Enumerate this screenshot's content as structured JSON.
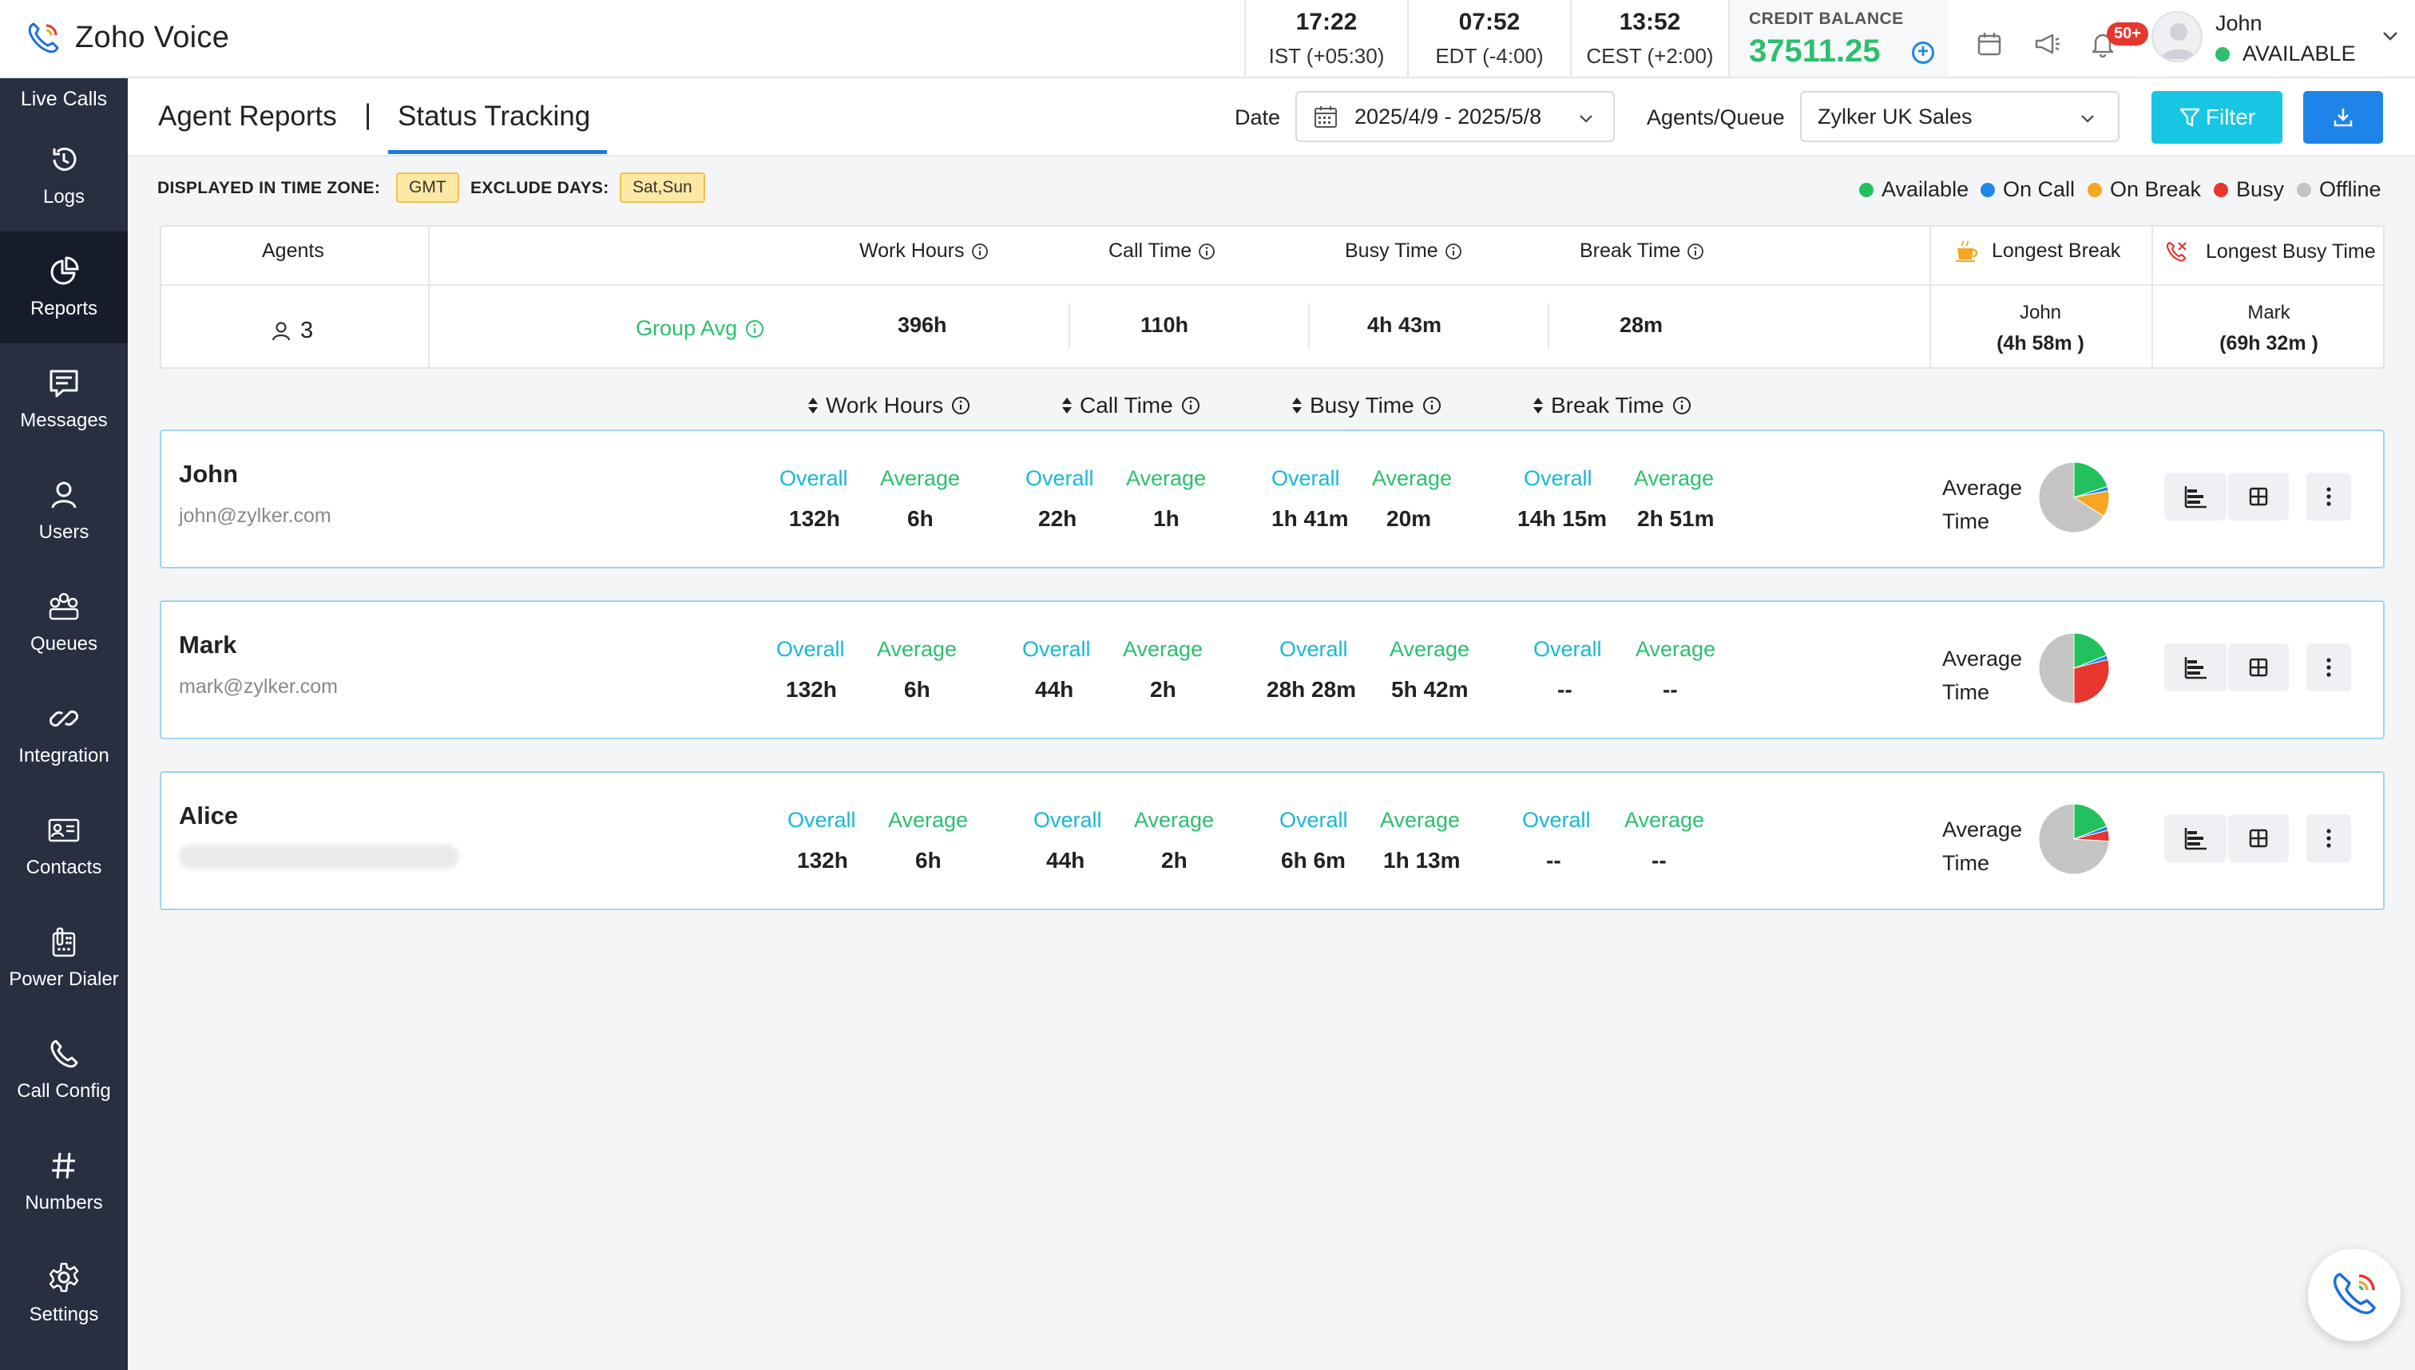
{
  "app": {
    "name": "Zoho Voice"
  },
  "clocks": [
    {
      "time": "17:22",
      "zone": "IST (+05:30)"
    },
    {
      "time": "07:52",
      "zone": "EDT (-4:00)"
    },
    {
      "time": "13:52",
      "zone": "CEST (+2:00)"
    }
  ],
  "credit": {
    "label": "CREDIT BALANCE",
    "value": "37511.25"
  },
  "notifications": {
    "badge": "50+"
  },
  "user": {
    "name": "John",
    "status": "AVAILABLE"
  },
  "sidebar": {
    "live": "Live Calls",
    "items": [
      {
        "label": "Logs",
        "icon": "history-icon"
      },
      {
        "label": "Reports",
        "icon": "pie-chart-icon",
        "active": true
      },
      {
        "label": "Messages",
        "icon": "message-icon"
      },
      {
        "label": "Users",
        "icon": "user-icon"
      },
      {
        "label": "Queues",
        "icon": "queues-icon"
      },
      {
        "label": "Integration",
        "icon": "link-icon"
      },
      {
        "label": "Contacts",
        "icon": "contact-card-icon"
      },
      {
        "label": "Power Dialer",
        "icon": "power-dialer-icon"
      },
      {
        "label": "Call Config",
        "icon": "phone-icon"
      },
      {
        "label": "Numbers",
        "icon": "hash-icon"
      },
      {
        "label": "Settings",
        "icon": "gear-icon"
      }
    ]
  },
  "subheader": {
    "crumb1": "Agent Reports",
    "sep": "|",
    "crumb2": "Status Tracking",
    "date_label": "Date",
    "date_value": "2025/4/9 - 2025/5/8",
    "agents_label": "Agents/Queue",
    "agents_value": "Zylker UK Sales",
    "filter_label": "Filter"
  },
  "info": {
    "tz_label": "DISPLAYED IN TIME ZONE:",
    "tz_value": "GMT",
    "exclude_label": "EXCLUDE DAYS:",
    "exclude_value": "Sat,Sun"
  },
  "legend": [
    {
      "label": "Available",
      "color": "#22c15e"
    },
    {
      "label": "On Call",
      "color": "#1e88e5"
    },
    {
      "label": "On Break",
      "color": "#f5a623"
    },
    {
      "label": "Busy",
      "color": "#e8352e"
    },
    {
      "label": "Offline",
      "color": "#c4c4c4"
    }
  ],
  "summary": {
    "agents_header": "Agents",
    "agents_count": "3",
    "group_avg": "Group Avg",
    "work_header": "Work Hours",
    "call_header": "Call Time",
    "busy_header": "Busy Time",
    "break_header": "Break Time",
    "work_val": "396h",
    "call_val": "110h",
    "busy_val": "4h 43m",
    "break_val": "28m",
    "longest_break_header": "Longest Break",
    "longest_busy_header": "Longest Busy Time",
    "longest_break_name": "John",
    "longest_break_val": "(4h 58m )",
    "longest_busy_name": "Mark",
    "longest_busy_val": "(69h 32m )"
  },
  "sort": {
    "work": "Work Hours",
    "call": "Call Time",
    "busy": "Busy Time",
    "break": "Break Time"
  },
  "labels": {
    "overall": "Overall",
    "average": "Average",
    "avg_time_1": "Average",
    "avg_time_2": "Time"
  },
  "agents": [
    {
      "name": "John",
      "email": "john@zylker.com",
      "work": [
        "132h",
        "6h"
      ],
      "call": [
        "22h",
        "1h"
      ],
      "busy": [
        "1h 41m",
        "20m"
      ],
      "break": [
        "14h 15m",
        "2h 51m"
      ],
      "pie": [
        {
          "status": "Available",
          "fraction": 0.2
        },
        {
          "status": "On Call",
          "fraction": 0.02
        },
        {
          "status": "On Break",
          "fraction": 0.12
        },
        {
          "status": "Offline",
          "fraction": 0.66
        }
      ]
    },
    {
      "name": "Mark",
      "email": "mark@zylker.com",
      "work": [
        "132h",
        "6h"
      ],
      "call": [
        "44h",
        "2h"
      ],
      "busy": [
        "28h 28m",
        "5h 42m"
      ],
      "break": [
        "--",
        "--"
      ],
      "pie": [
        {
          "status": "Available",
          "fraction": 0.19
        },
        {
          "status": "On Call",
          "fraction": 0.02
        },
        {
          "status": "Busy",
          "fraction": 0.29
        },
        {
          "status": "Offline",
          "fraction": 0.5
        }
      ]
    },
    {
      "name": "Alice",
      "email": "",
      "work": [
        "132h",
        "6h"
      ],
      "call": [
        "44h",
        "2h"
      ],
      "busy": [
        "6h 6m",
        "1h 13m"
      ],
      "break": [
        "--",
        "--"
      ],
      "pie": [
        {
          "status": "Available",
          "fraction": 0.19
        },
        {
          "status": "On Call",
          "fraction": 0.02
        },
        {
          "status": "Busy",
          "fraction": 0.05
        },
        {
          "status": "Offline",
          "fraction": 0.74
        }
      ]
    }
  ]
}
